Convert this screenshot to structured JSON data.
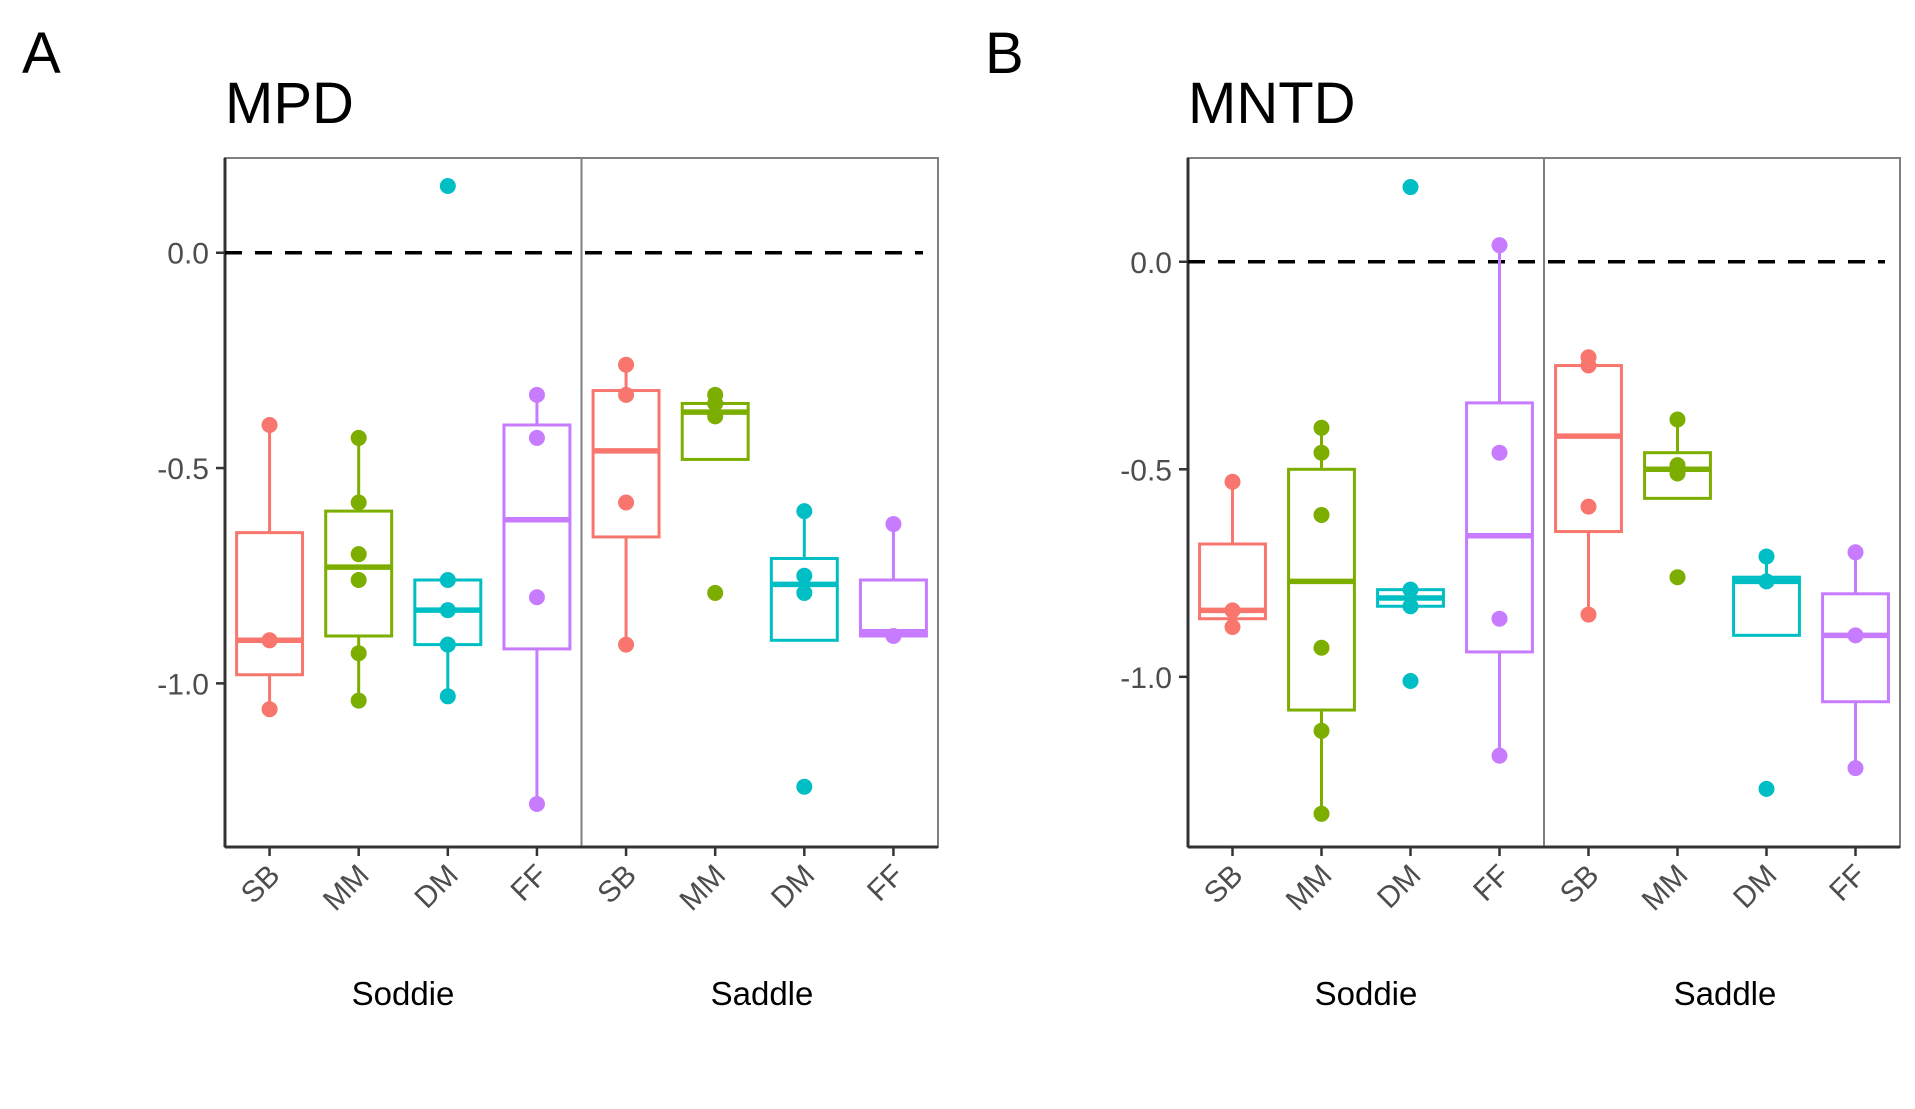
{
  "colors": {
    "SB": "#F8766D",
    "MM": "#7CAE00",
    "DM": "#00BFC4",
    "FF": "#C77CFF"
  },
  "chart_data": [
    {
      "type": "box",
      "panel": "A",
      "title": "MPD",
      "xlabel": "",
      "ylabel": "",
      "ylim": [
        -1.38,
        0.22
      ],
      "yticks": [
        0.0,
        -0.5,
        -1.0
      ],
      "ytick_labels": [
        "0.0",
        "-0.5",
        "-1.0"
      ],
      "reference_line": 0.0,
      "categories": [
        "SB",
        "MM",
        "DM",
        "FF"
      ],
      "groups": [
        {
          "name": "Soddie",
          "boxes": [
            {
              "category": "SB",
              "q1": -0.98,
              "median": -0.9,
              "q3": -0.65,
              "whisker_low": -1.06,
              "whisker_high": -0.4,
              "points": [
                -0.4,
                -0.9,
                -1.06
              ],
              "outliers": []
            },
            {
              "category": "MM",
              "q1": -0.89,
              "median": -0.73,
              "q3": -0.6,
              "whisker_low": -1.04,
              "whisker_high": -0.43,
              "points": [
                -0.43,
                -0.58,
                -0.7,
                -0.76,
                -0.93,
                -1.04
              ],
              "outliers": []
            },
            {
              "category": "DM",
              "q1": -0.91,
              "median": -0.83,
              "q3": -0.76,
              "whisker_low": -1.03,
              "whisker_high": -0.76,
              "points": [
                -0.76,
                -0.83,
                -0.91,
                -1.03,
                0.155
              ],
              "outliers": [
                0.155
              ]
            },
            {
              "category": "FF",
              "q1": -0.92,
              "median": -0.62,
              "q3": -0.4,
              "whisker_low": -1.28,
              "whisker_high": -0.33,
              "points": [
                -0.33,
                -0.43,
                -0.8,
                -1.28
              ],
              "outliers": []
            }
          ]
        },
        {
          "name": "Saddle",
          "boxes": [
            {
              "category": "SB",
              "q1": -0.66,
              "median": -0.46,
              "q3": -0.32,
              "whisker_low": -0.91,
              "whisker_high": -0.26,
              "points": [
                -0.26,
                -0.33,
                -0.58,
                -0.91
              ],
              "outliers": []
            },
            {
              "category": "MM",
              "q1": -0.48,
              "median": -0.37,
              "q3": -0.35,
              "whisker_low": -0.48,
              "whisker_high": -0.33,
              "points": [
                -0.33,
                -0.35,
                -0.38,
                -0.79
              ],
              "outliers": [
                -0.79
              ]
            },
            {
              "category": "DM",
              "q1": -0.9,
              "median": -0.77,
              "q3": -0.71,
              "whisker_low": -0.9,
              "whisker_high": -0.6,
              "points": [
                -0.6,
                -0.75,
                -0.79,
                -1.24
              ],
              "outliers": [
                -1.24
              ]
            },
            {
              "category": "FF",
              "q1": -0.89,
              "median": -0.88,
              "q3": -0.76,
              "whisker_low": -0.89,
              "whisker_high": -0.63,
              "points": [
                -0.63,
                -0.89
              ],
              "outliers": []
            }
          ]
        }
      ]
    },
    {
      "type": "box",
      "panel": "B",
      "title": "MNTD",
      "xlabel": "",
      "ylabel": "",
      "ylim": [
        -1.41,
        0.25
      ],
      "yticks": [
        0.0,
        -0.5,
        -1.0
      ],
      "ytick_labels": [
        "0.0",
        "-0.5",
        "-1.0"
      ],
      "reference_line": 0.0,
      "categories": [
        "SB",
        "MM",
        "DM",
        "FF"
      ],
      "groups": [
        {
          "name": "Soddie",
          "boxes": [
            {
              "category": "SB",
              "q1": -0.86,
              "median": -0.84,
              "q3": -0.68,
              "whisker_low": -0.86,
              "whisker_high": -0.53,
              "points": [
                -0.53,
                -0.84,
                -0.88
              ],
              "outliers": []
            },
            {
              "category": "MM",
              "q1": -1.08,
              "median": -0.77,
              "q3": -0.5,
              "whisker_low": -1.33,
              "whisker_high": -0.4,
              "points": [
                -0.4,
                -0.46,
                -0.61,
                -0.93,
                -1.13,
                -1.33
              ],
              "outliers": []
            },
            {
              "category": "DM",
              "q1": -0.83,
              "median": -0.81,
              "q3": -0.79,
              "whisker_low": -0.83,
              "whisker_high": -0.79,
              "points": [
                -0.79,
                -0.83,
                -1.01,
                0.18
              ],
              "outliers": [
                -1.01,
                0.18
              ]
            },
            {
              "category": "FF",
              "q1": -0.94,
              "median": -0.66,
              "q3": -0.34,
              "whisker_low": -1.19,
              "whisker_high": 0.04,
              "points": [
                0.04,
                -0.46,
                -0.86,
                -1.19
              ],
              "outliers": []
            }
          ]
        },
        {
          "name": "Saddle",
          "boxes": [
            {
              "category": "SB",
              "q1": -0.65,
              "median": -0.42,
              "q3": -0.25,
              "whisker_low": -0.85,
              "whisker_high": -0.23,
              "points": [
                -0.23,
                -0.25,
                -0.59,
                -0.85
              ],
              "outliers": []
            },
            {
              "category": "MM",
              "q1": -0.57,
              "median": -0.5,
              "q3": -0.46,
              "whisker_low": -0.57,
              "whisker_high": -0.38,
              "points": [
                -0.38,
                -0.49,
                -0.51,
                -0.76
              ],
              "outliers": [
                -0.76
              ]
            },
            {
              "category": "DM",
              "q1": -0.9,
              "median": -0.77,
              "q3": -0.76,
              "whisker_low": -0.9,
              "whisker_high": -0.71,
              "points": [
                -0.71,
                -0.77,
                -1.27
              ],
              "outliers": [
                -1.27
              ]
            },
            {
              "category": "FF",
              "q1": -1.06,
              "median": -0.9,
              "q3": -0.8,
              "whisker_low": -1.22,
              "whisker_high": -0.7,
              "points": [
                -0.7,
                -0.9,
                -1.22
              ],
              "outliers": []
            }
          ]
        }
      ]
    }
  ]
}
